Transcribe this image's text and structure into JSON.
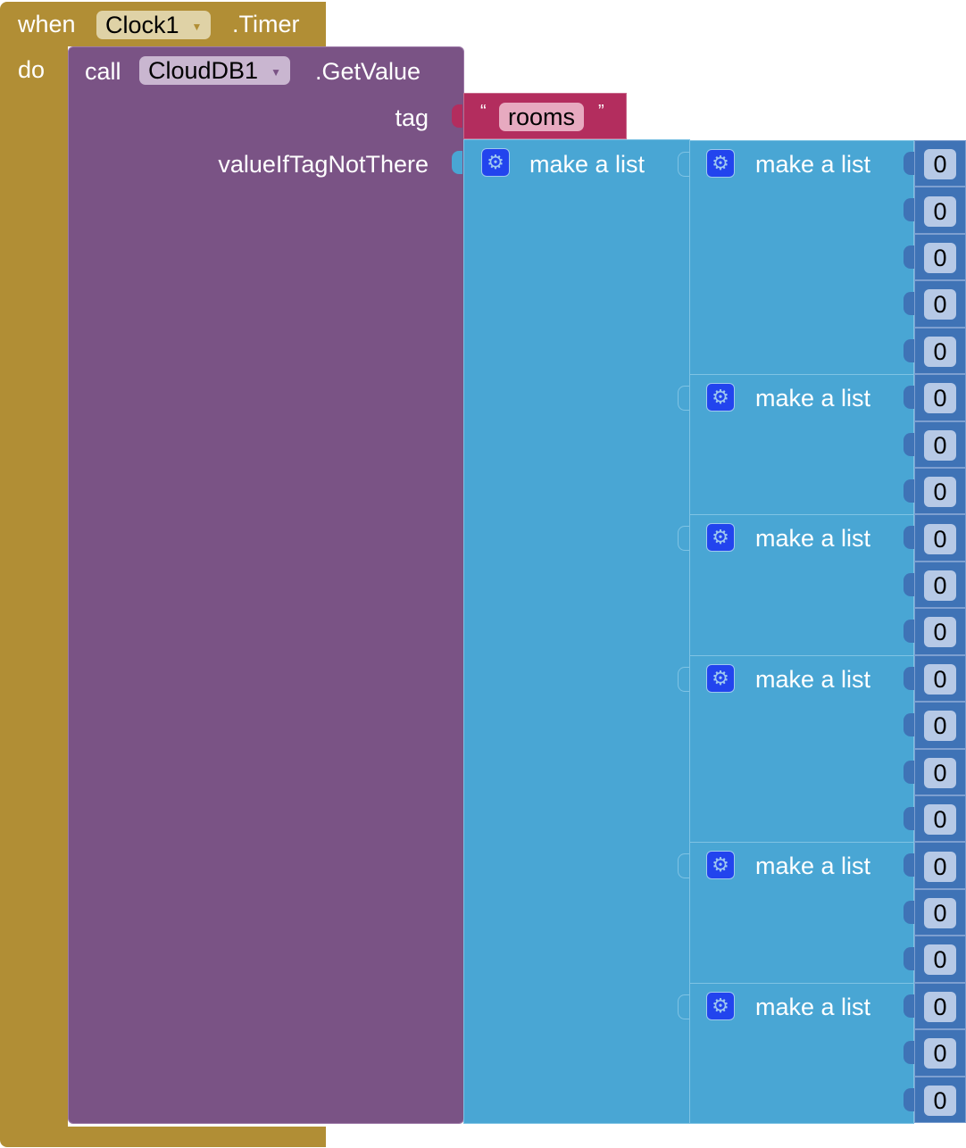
{
  "event": {
    "when_label": "when",
    "component": "Clock1",
    "event_name": ".Timer",
    "do_label": "do"
  },
  "call": {
    "call_label": "call",
    "component": "CloudDB1",
    "method": ".GetValue",
    "tag_label": "tag",
    "value_label": "valueIfTagNotThere"
  },
  "tag_string": {
    "open_quote": "“",
    "value": "rooms",
    "close_quote": "”"
  },
  "outer_list": {
    "label": "make a list",
    "icon": "gear-icon"
  },
  "sublists": [
    {
      "label": "make a list",
      "items": [
        "0",
        "0",
        "0",
        "0",
        "0"
      ]
    },
    {
      "label": "make a list",
      "items": [
        "0",
        "0",
        "0"
      ]
    },
    {
      "label": "make a list",
      "items": [
        "0",
        "0",
        "0"
      ]
    },
    {
      "label": "make a list",
      "items": [
        "0",
        "0",
        "0",
        "0"
      ]
    },
    {
      "label": "make a list",
      "items": [
        "0",
        "0",
        "0"
      ]
    },
    {
      "label": "make a list",
      "items": [
        "0",
        "0",
        "0"
      ]
    }
  ],
  "colors": {
    "event": "#b18e35",
    "procedure": "#7a5385",
    "text": "#b32d5e",
    "list": "#49a6d4",
    "number": "#3f73b6"
  }
}
